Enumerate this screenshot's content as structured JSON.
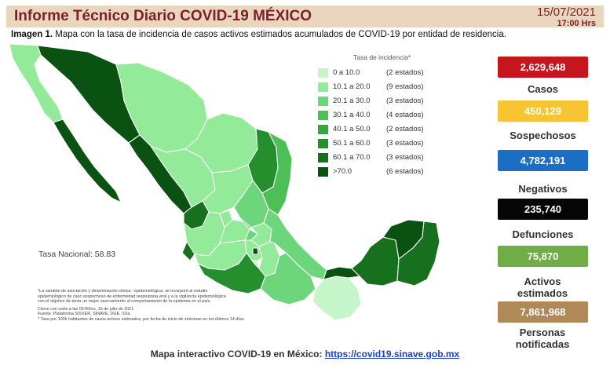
{
  "header": {
    "title": "Informe Técnico Diario COVID-19 MÉXICO",
    "date": "15/07/2021",
    "time": "17:00 Hrs"
  },
  "subtitle": {
    "bold": "Imagen 1.",
    "text": " Mapa con la tasa de incidencia de casos activos estimados acumulados de COVID-19 por entidad de residencia."
  },
  "legend": {
    "title": "Tasa de incidencia*",
    "items": [
      {
        "range": "0    a  10.0",
        "count": "(2 estados)",
        "color": "#c6f5c9"
      },
      {
        "range": "10.1 a  20.0",
        "count": "(9 estados)",
        "color": "#93ea98"
      },
      {
        "range": "20.1 a  30.0",
        "count": "(3 estados)",
        "color": "#6ed67a"
      },
      {
        "range": "30.1 a  40.0",
        "count": "(4 estados)",
        "color": "#4cbf57"
      },
      {
        "range": "40.1 a  50.0",
        "count": "(2 estados)",
        "color": "#36a640"
      },
      {
        "range": "50.1 a  60.0",
        "count": "(3 estados)",
        "color": "#248f2c"
      },
      {
        "range": "60.1 a  70.0",
        "count": "(3 estados)",
        "color": "#16701d"
      },
      {
        "range": ">70.0",
        "count": "(6 estados)",
        "color": "#0a5211"
      }
    ]
  },
  "tasa_nacional": "Tasa Nacional: 58.83",
  "notes": [
    "*La variable de asociación y dictaminación clínica - epidemiológica; se incorporó al estudio",
    "epidemiológico de caso sospechoso de enfermedad respiratoria viral y a la vigilancia epidemiológica",
    "con el objetivo de tener un mejor acercamiento al comportamiento de la epidemia en el país.",
    "Cierre con corte a las 09:00hrs, 15 de julio de 2021",
    "Fuente: Plataforma SISVER, SINAVE, DGE, SSa.",
    "* Tasa por 100k habitantes de casos activos estimados, por fecha de inicio de síntomas en los últimos 14 días."
  ],
  "stats": [
    {
      "value": "2,629,648",
      "label": "Casos",
      "color": "#c4161c"
    },
    {
      "value": "450,129",
      "label": "Sospechosos",
      "color": "#f7c534"
    },
    {
      "value": "4,782,191",
      "label": "Negativos",
      "color": "#1a6ec3"
    },
    {
      "value": "235,740",
      "label": "Defunciones",
      "color": "#050505"
    },
    {
      "value": "75,870",
      "label": "Activos estimados",
      "color": "#71ad47"
    },
    {
      "value": "7,861,968",
      "label": "Personas notificadas",
      "color": "#b08958"
    }
  ],
  "footer": {
    "text": "Mapa interactivo COVID-19 en México: ",
    "link": "https://covid19.sinave.gob.mx"
  }
}
